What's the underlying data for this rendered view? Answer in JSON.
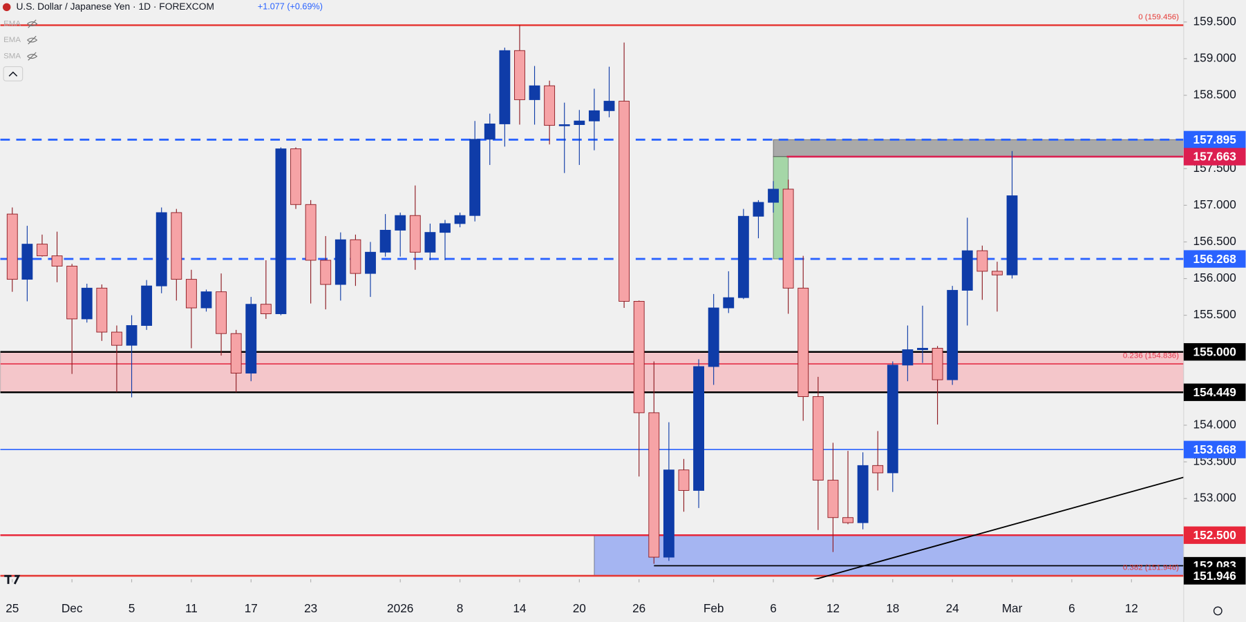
{
  "chart_data": {
    "type": "candlestick",
    "title": "U.S. Dollar / Japanese Yen · 1D · FOREXCOM",
    "change": "+1.077 (+0.69%)",
    "indicators": [
      "EMA",
      "EMA",
      "SMA"
    ],
    "up_color": "#0f3ca8",
    "down_color": "#f6a3a6",
    "xlim": [
      -0.8,
      78.5
    ],
    "ylim": [
      151.9,
      159.8
    ],
    "xticks": [
      {
        "value": 0,
        "label": "25"
      },
      {
        "value": 4,
        "label": "Dec"
      },
      {
        "value": 8,
        "label": "5"
      },
      {
        "value": 12,
        "label": "11"
      },
      {
        "value": 16,
        "label": "17"
      },
      {
        "value": 20,
        "label": "23"
      },
      {
        "value": 26,
        "label": "2026"
      },
      {
        "value": 30,
        "label": "8"
      },
      {
        "value": 34,
        "label": "14"
      },
      {
        "value": 38,
        "label": "20"
      },
      {
        "value": 42,
        "label": "26"
      },
      {
        "value": 47,
        "label": "Feb"
      },
      {
        "value": 51,
        "label": "6"
      },
      {
        "value": 55,
        "label": "12"
      },
      {
        "value": 59,
        "label": "18"
      },
      {
        "value": 63,
        "label": "24"
      },
      {
        "value": 67,
        "label": "Mar"
      },
      {
        "value": 71,
        "label": "6"
      },
      {
        "value": 75,
        "label": "12"
      }
    ],
    "yticks": [
      {
        "value": 153,
        "label": "153.000"
      },
      {
        "value": 153.5,
        "label": "153.500"
      },
      {
        "value": 154,
        "label": "154.000"
      },
      {
        "value": 155.5,
        "label": "155.500"
      },
      {
        "value": 156,
        "label": "156.000"
      },
      {
        "value": 156.5,
        "label": "156.500"
      },
      {
        "value": 157,
        "label": "157.000"
      },
      {
        "value": 157.5,
        "label": "157.500"
      },
      {
        "value": 158.5,
        "label": "158.500"
      },
      {
        "value": 159,
        "label": "159.000"
      },
      {
        "value": 159.5,
        "label": "159.500"
      }
    ],
    "open": [
      156.88,
      155.99,
      156.47,
      156.31,
      156.17,
      155.45,
      155.87,
      155.27,
      155.09,
      155.36,
      155.9,
      156.9,
      155.99,
      155.6,
      155.82,
      155.25,
      154.71,
      155.65,
      155.52,
      157.77,
      157.01,
      156.25,
      155.92,
      156.53,
      156.07,
      156.36,
      156.66,
      156.86,
      156.36,
      156.63,
      156.75,
      156.86,
      157.9,
      158.11,
      159.11,
      158.44,
      158.63,
      158.09,
      158.1,
      158.15,
      158.29,
      158.42,
      155.69,
      154.17,
      152.2,
      153.39,
      153.11,
      154.8,
      155.6,
      155.74,
      156.85,
      157.04,
      157.22,
      155.87,
      154.39,
      153.25,
      152.74,
      152.67,
      153.45,
      153.35,
      154.82,
      155.03,
      155.05,
      154.62,
      155.84,
      156.38,
      156.1,
      156.05
    ],
    "high": [
      156.97,
      156.72,
      156.6,
      156.64,
      156.2,
      155.93,
      155.92,
      155.36,
      155.5,
      155.98,
      156.97,
      156.95,
      156.12,
      155.85,
      156.07,
      155.3,
      155.75,
      156.25,
      157.79,
      157.79,
      157.07,
      156.58,
      156.63,
      156.6,
      156.5,
      156.88,
      156.9,
      157.27,
      156.75,
      156.8,
      156.9,
      158.15,
      158.25,
      159.15,
      159.46,
      158.9,
      158.7,
      158.4,
      158.3,
      158.59,
      158.89,
      159.22,
      155.7,
      154.87,
      154.04,
      153.54,
      154.9,
      155.79,
      156.1,
      156.95,
      157.07,
      157.33,
      157.35,
      156.31,
      154.66,
      153.76,
      153.65,
      153.63,
      153.92,
      154.87,
      155.36,
      155.63,
      155.08,
      155.9,
      156.83,
      156.45,
      156.23,
      157.74
    ],
    "low": [
      155.82,
      155.69,
      156.3,
      155.95,
      154.7,
      155.4,
      155.15,
      154.45,
      154.38,
      155.3,
      155.8,
      155.7,
      155.05,
      155.55,
      154.95,
      154.45,
      154.6,
      155.45,
      155.5,
      156.95,
      155.66,
      155.58,
      155.7,
      155.9,
      155.75,
      156.3,
      156.3,
      156.12,
      156.25,
      156.25,
      156.7,
      156.78,
      157.55,
      157.8,
      158.1,
      158.1,
      157.83,
      157.44,
      157.55,
      157.75,
      158.2,
      155.6,
      153.3,
      152.11,
      152.15,
      152.82,
      152.87,
      154.55,
      155.53,
      155.72,
      156.55,
      156.9,
      155.52,
      154.06,
      152.57,
      152.27,
      152.65,
      152.58,
      153.11,
      153.09,
      154.6,
      154.85,
      154.01,
      154.55,
      155.36,
      155.71,
      155.55,
      156.0
    ],
    "close": [
      155.99,
      156.47,
      156.31,
      156.17,
      155.45,
      155.87,
      155.27,
      155.09,
      155.36,
      155.9,
      156.9,
      155.99,
      155.6,
      155.82,
      155.25,
      154.71,
      155.65,
      155.52,
      157.77,
      157.01,
      156.25,
      155.92,
      156.53,
      156.07,
      156.36,
      156.66,
      156.86,
      156.36,
      156.63,
      156.75,
      156.86,
      157.9,
      158.11,
      159.11,
      158.44,
      158.63,
      158.09,
      158.1,
      158.15,
      158.29,
      158.42,
      155.69,
      154.17,
      152.2,
      153.39,
      153.11,
      154.8,
      155.6,
      155.74,
      156.85,
      157.04,
      157.22,
      155.87,
      154.39,
      153.25,
      152.74,
      152.67,
      153.45,
      153.35,
      154.82,
      155.03,
      155.05,
      154.62,
      155.84,
      156.38,
      156.1,
      156.05,
      157.13
    ],
    "zones": [
      {
        "from": 154.449,
        "to": 155,
        "color": "#f4c6ca"
      },
      {
        "from": 151.946,
        "to": 152.5,
        "color": "#a5b5f2",
        "start": 39
      },
      {
        "from": 157.663,
        "to": 157.895,
        "color": "#a9a9a9",
        "start": 51
      },
      {
        "from": 156.268,
        "to": 157.663,
        "color": "#a5d6a7",
        "start": 51,
        "end": 52
      }
    ],
    "levels": [
      {
        "value": 159.456,
        "color": "#e53935",
        "style": "solid",
        "fib_label": "0 (159.456)"
      },
      {
        "value": 157.895,
        "label": "157.895",
        "color": "#2962ff",
        "style": "dashed"
      },
      {
        "value": 157.663,
        "label": "157.663",
        "color": "#dc1e50",
        "style": "solid",
        "start": 51.9
      },
      {
        "value": 156.268,
        "label": "156.268",
        "color": "#2962ff",
        "style": "dashed"
      },
      {
        "value": 155,
        "label": "155.000",
        "color": "#000000",
        "style": "solid"
      },
      {
        "value": 154.836,
        "color": "#e53950",
        "style": "thin",
        "fib_label": "0.236 (154.836)"
      },
      {
        "value": 154.449,
        "label": "154.449",
        "color": "#000000",
        "style": "solid"
      },
      {
        "value": 153.668,
        "label": "153.668",
        "color": "#2962ff",
        "style": "thin"
      },
      {
        "value": 152.5,
        "label": "152.500",
        "color": "#e8273a",
        "style": "solid"
      },
      {
        "value": 152.083,
        "label": "152.083",
        "color": "#000000",
        "style": "thin",
        "start": 43
      },
      {
        "value": 151.946,
        "label": "151.946",
        "color": "#e53935",
        "badge": "#000000",
        "style": "solid",
        "fib_label": "0.382 (151.946)"
      }
    ],
    "trendline": {
      "color": "#000000",
      "x": [
        50.3,
        78.5
      ],
      "y": [
        151.7,
        153.29
      ]
    }
  }
}
